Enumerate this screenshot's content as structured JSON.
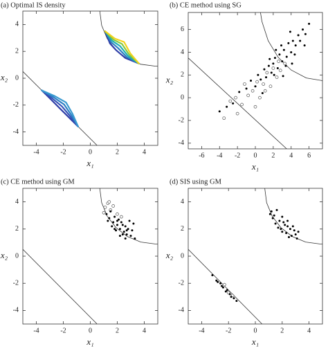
{
  "chart_data": [
    {
      "type": "contour",
      "title": "(a) Optimal IS density",
      "xlabel": "x₁",
      "ylabel": "x₂",
      "xlim": [
        -5,
        5
      ],
      "ylim": [
        -5,
        5
      ],
      "xticks": [
        -4,
        -2,
        0,
        2,
        4
      ],
      "yticks": [
        -4,
        -2,
        0,
        2,
        4
      ],
      "boundary": [
        {
          "x": [
            0.7,
            0.84,
            1.25,
            1.9,
            2.75,
            3.74,
            4.8,
            5
          ],
          "y": [
            5,
            3.94,
            2.95,
            2.1,
            1.45,
            1.04,
            0.9,
            0.9
          ]
        },
        {
          "x": [
            -5,
            0.5
          ],
          "y": [
            0.5,
            -5
          ]
        }
      ],
      "contours": [
        {
          "color": "#2f3fa8",
          "x": [
            1.1,
            1.45,
            1.9,
            2.6,
            3.6
          ],
          "y": [
            3.5,
            2.6,
            2.1,
            1.5,
            1.1
          ]
        },
        {
          "color": "#2b7fc4",
          "x": [
            1.1,
            1.54,
            2.05,
            2.69,
            3.6
          ],
          "y": [
            3.5,
            2.69,
            2.25,
            1.59,
            1.1
          ]
        },
        {
          "color": "#1fb0b0",
          "x": [
            1.1,
            1.63,
            2.2,
            2.78,
            3.6
          ],
          "y": [
            3.5,
            2.78,
            2.4,
            1.68,
            1.1
          ]
        },
        {
          "color": "#86c940",
          "x": [
            1.1,
            1.72,
            2.35,
            2.87,
            3.6
          ],
          "y": [
            3.5,
            2.87,
            2.55,
            1.77,
            1.1
          ]
        },
        {
          "color": "#f2d21b",
          "x": [
            1.1,
            1.81,
            2.5,
            2.96,
            3.6
          ],
          "y": [
            3.5,
            2.96,
            2.7,
            1.86,
            1.1
          ]
        },
        {
          "color": "#2f3fa8",
          "x": [
            -3.6,
            -2.9,
            -2.25,
            -1.6,
            -0.9
          ],
          "y": [
            -0.9,
            -1.6,
            -2.25,
            -2.9,
            -3.6
          ]
        },
        {
          "color": "#3452b8",
          "x": [
            -3.6,
            -2.81,
            -2.1,
            -1.51,
            -0.9
          ],
          "y": [
            -0.9,
            -1.51,
            -2.1,
            -2.81,
            -3.6
          ]
        },
        {
          "color": "#2b7fc4",
          "x": [
            -3.6,
            -2.72,
            -1.95,
            -1.42,
            -0.9
          ],
          "y": [
            -0.9,
            -1.42,
            -1.95,
            -2.72,
            -3.6
          ]
        },
        {
          "color": "#3a9ad0",
          "x": [
            -3.6,
            -2.63,
            -1.8,
            -1.33,
            -0.9
          ],
          "y": [
            -0.9,
            -1.33,
            -1.8,
            -2.63,
            -3.6
          ]
        }
      ]
    },
    {
      "type": "scatter",
      "title": "(b) CE method using SG",
      "xlabel": "x₁",
      "ylabel": "x₂",
      "xlim": [
        -7.5,
        7.5
      ],
      "ylim": [
        -4.5,
        7.5
      ],
      "xticks": [
        -6,
        -4,
        -2,
        0,
        2,
        4,
        6
      ],
      "yticks": [
        -4,
        -2,
        0,
        2,
        4,
        6
      ],
      "boundary": [
        {
          "x": [
            0.57,
            0.74,
            1.44,
            2.55,
            4.0,
            5.69,
            7.5
          ],
          "y": [
            7.5,
            6.69,
            5.0,
            3.55,
            2.44,
            1.74,
            1.5
          ]
        },
        {
          "x": [
            -7.5,
            3.5
          ],
          "y": [
            3.5,
            -4.5
          ]
        }
      ],
      "series": [
        {
          "marker": "circle",
          "color": "#555555",
          "x": [
            -3.5,
            -2.8,
            -2.2,
            -1.5,
            -1.2,
            -0.8,
            -0.3,
            0.2,
            0.5,
            0.9,
            1.3,
            1.7,
            2.0,
            2.4,
            2.8,
            3.3,
            -2.0,
            0.0,
            1.1,
            2.6
          ],
          "y": [
            -1.8,
            -0.3,
            0.0,
            -0.6,
            1.2,
            0.2,
            0.6,
            1.4,
            0.0,
            1.2,
            2.2,
            1.0,
            2.6,
            1.8,
            2.4,
            3.0,
            -1.4,
            -0.8,
            0.6,
            3.2
          ]
        },
        {
          "marker": "dot",
          "color": "#000000",
          "x": [
            -4.0,
            -3.2,
            -2.5,
            -1.8,
            -1.0,
            -0.5,
            0.0,
            0.3,
            0.6,
            1.0,
            1.2,
            1.5,
            1.8,
            2.0,
            2.2,
            2.5,
            2.7,
            3.0,
            3.2,
            3.5,
            3.7,
            4.0,
            4.2,
            4.5,
            4.8,
            5.0,
            5.3,
            5.6,
            6.0,
            2.3,
            3.4,
            1.6,
            4.4,
            2.9,
            3.9,
            0.8,
            5.5,
            2.1,
            3.1,
            4.1
          ],
          "y": [
            -1.2,
            -0.8,
            -0.5,
            0.5,
            0.8,
            1.5,
            1.0,
            2.0,
            1.6,
            2.5,
            1.8,
            2.8,
            2.2,
            3.0,
            3.5,
            2.6,
            3.8,
            3.2,
            4.2,
            3.6,
            4.8,
            4.0,
            5.0,
            4.6,
            5.5,
            5.0,
            6.0,
            5.6,
            6.5,
            4.2,
            2.8,
            3.4,
            3.8,
            4.6,
            5.8,
            0.4,
            4.6,
            2.0,
            1.9,
            3.0
          ]
        }
      ]
    },
    {
      "type": "scatter",
      "title": "(c) CE method using GM",
      "xlabel": "x₁",
      "ylabel": "x₂",
      "xlim": [
        -5,
        5
      ],
      "ylim": [
        -5,
        5
      ],
      "xticks": [
        -4,
        -2,
        0,
        2,
        4
      ],
      "yticks": [
        -4,
        -2,
        0,
        2,
        4
      ],
      "boundary": [
        {
          "x": [
            0.7,
            0.84,
            1.25,
            1.9,
            2.75,
            3.74,
            4.8,
            5
          ],
          "y": [
            5,
            3.94,
            2.95,
            2.1,
            1.45,
            1.04,
            0.9,
            0.9
          ]
        },
        {
          "x": [
            -5,
            0.5
          ],
          "y": [
            0.5,
            -5
          ]
        }
      ],
      "series": [
        {
          "marker": "circle",
          "color": "#555555",
          "x": [
            1.1,
            1.3,
            1.5,
            1.0,
            1.7,
            2.0,
            1.4,
            2.3
          ],
          "y": [
            3.6,
            3.9,
            3.4,
            3.2,
            3.7,
            3.1,
            4.0,
            2.9
          ]
        },
        {
          "marker": "dot",
          "color": "#000000",
          "x": [
            1.2,
            1.4,
            1.5,
            1.7,
            1.8,
            2.0,
            2.1,
            2.2,
            2.3,
            2.5,
            2.6,
            2.7,
            2.8,
            3.0,
            3.1,
            3.3,
            1.6,
            1.9,
            2.4,
            2.9,
            2.2,
            2.6,
            1.3,
            3.2,
            2.0,
            2.7,
            1.8,
            2.4
          ],
          "y": [
            3.1,
            2.8,
            3.3,
            2.5,
            2.9,
            2.3,
            2.7,
            2.0,
            2.5,
            1.8,
            2.2,
            1.6,
            2.0,
            1.5,
            1.9,
            1.3,
            2.2,
            1.9,
            1.6,
            2.6,
            1.5,
            1.3,
            2.6,
            2.4,
            2.6,
            1.9,
            2.0,
            2.3
          ]
        }
      ]
    },
    {
      "type": "scatter",
      "title": "(d) SIS using GM",
      "xlabel": "x₁",
      "ylabel": "x₂",
      "xlim": [
        -5,
        5
      ],
      "ylim": [
        -5,
        5
      ],
      "xticks": [
        -4,
        -2,
        0,
        2,
        4
      ],
      "yticks": [
        -4,
        -2,
        0,
        2,
        4
      ],
      "boundary": [
        {
          "x": [
            0.7,
            0.84,
            1.25,
            1.9,
            2.75,
            3.74,
            4.8,
            5
          ],
          "y": [
            5,
            3.94,
            2.95,
            2.1,
            1.45,
            1.04,
            0.9,
            0.9
          ]
        },
        {
          "x": [
            -5,
            0.5
          ],
          "y": [
            0.5,
            -5
          ]
        }
      ],
      "series": [
        {
          "marker": "circle",
          "color": "#555555",
          "x": [
            -2.0,
            -1.7,
            -2.3
          ],
          "y": [
            -2.7,
            -2.9,
            -2.1
          ]
        },
        {
          "marker": "dot",
          "color": "#000000",
          "x": [
            1.2,
            1.4,
            1.6,
            1.8,
            2.0,
            2.2,
            2.4,
            2.6,
            2.8,
            3.0,
            3.2,
            1.5,
            1.9,
            2.3,
            2.7,
            1.3,
            2.1,
            2.5,
            1.7,
            2.9,
            3.1,
            1.1,
            2.0,
            2.4,
            -3.2,
            -2.9,
            -2.6,
            -2.4,
            -2.1,
            -1.9,
            -1.6,
            -1.4,
            -2.8,
            -2.2,
            -1.8,
            -2.5
          ],
          "y": [
            3.3,
            3.0,
            3.4,
            2.6,
            2.9,
            2.3,
            2.6,
            2.0,
            2.2,
            1.6,
            1.8,
            2.4,
            2.0,
            1.7,
            1.5,
            2.8,
            2.5,
            1.4,
            2.1,
            1.9,
            1.3,
            3.1,
            1.8,
            2.2,
            -1.4,
            -1.8,
            -2.0,
            -2.3,
            -2.5,
            -2.8,
            -3.1,
            -3.3,
            -1.9,
            -2.6,
            -3.0,
            -2.2
          ]
        }
      ]
    }
  ]
}
